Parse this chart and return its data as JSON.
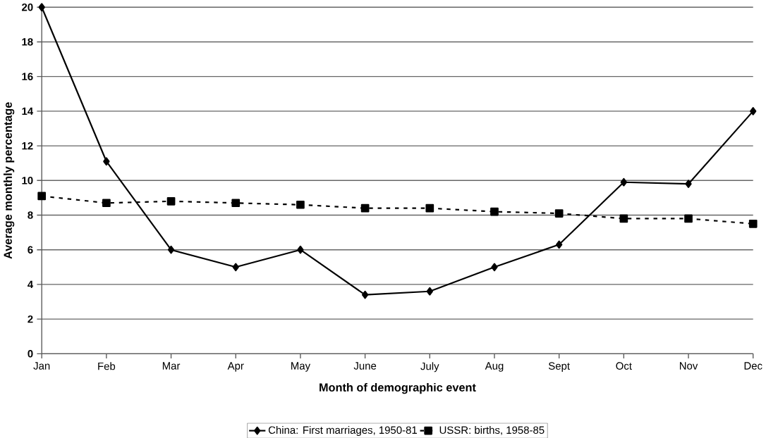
{
  "chart_data": {
    "type": "line",
    "xlabel": "Month of demographic event",
    "ylabel": "Average monthly percentage",
    "categories": [
      "Jan",
      "Feb",
      "Mar",
      "Apr",
      "May",
      "June",
      "July",
      "Aug",
      "Sept",
      "Oct",
      "Nov",
      "Dec"
    ],
    "series": [
      {
        "name": "China: First marriages, 1950-81",
        "color": "#000000",
        "marker": "diamond",
        "line_style": "solid",
        "values": [
          20,
          11.1,
          6,
          5,
          6,
          3.4,
          3.6,
          5.0,
          6.3,
          9.9,
          9.8,
          14
        ]
      },
      {
        "name": "USSR: births, 1958-85",
        "color": "#000000",
        "marker": "square",
        "line_style": "dashed",
        "values": [
          9.1,
          8.7,
          8.8,
          8.7,
          8.6,
          8.4,
          8.4,
          8.2,
          8.1,
          7.8,
          7.8,
          7.5
        ]
      }
    ],
    "ylim": [
      0,
      20
    ],
    "yticks": [
      0,
      2,
      4,
      6,
      8,
      10,
      12,
      14,
      16,
      18,
      20
    ],
    "grid": "y",
    "legend": "bottom"
  }
}
